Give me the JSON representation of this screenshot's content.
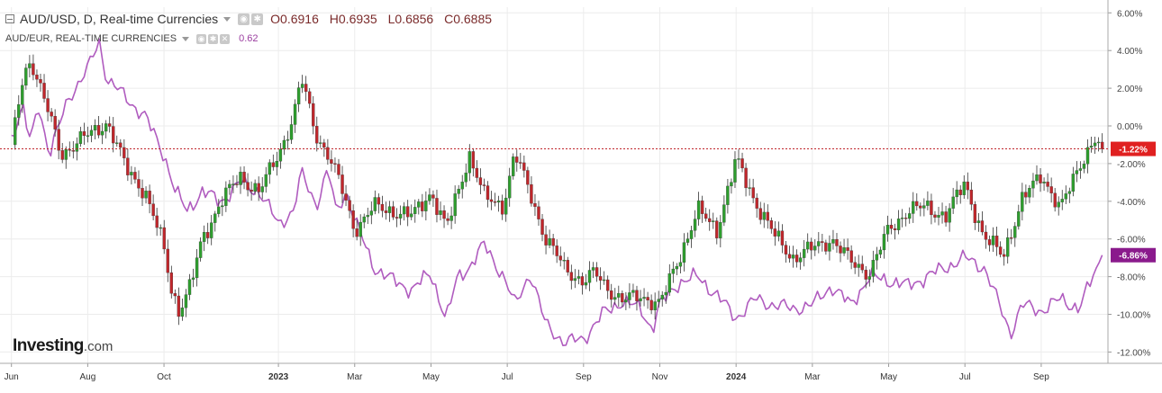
{
  "legend": {
    "main": {
      "title": "AUD/USD, D, Real-time Currencies",
      "open": "O0.6916",
      "high": "H0.6935",
      "low": "L0.6856",
      "close": "C0.6885"
    },
    "compare": {
      "title": "AUD/EUR, REAL-TIME CURRENCIES",
      "value": "0.62"
    }
  },
  "logo": {
    "brand": "Investing",
    "suffix": ".com"
  },
  "colors": {
    "up": "#2e9e2e",
    "down": "#c0262b",
    "compare_line": "#b05cbf",
    "main_badge": "#e02020",
    "compare_badge": "#8a1a8c",
    "grid": "#ececec"
  },
  "chart_data": {
    "type": "line",
    "y_axis": {
      "unit": "percent change",
      "ticks": [
        "6.00%",
        "4.00%",
        "2.00%",
        "0.00%",
        "-2.00%",
        "-4.00%",
        "-6.00%",
        "-8.00%",
        "-10.00%",
        "-12.00%"
      ],
      "range": [
        -12.6,
        6.3
      ]
    },
    "x_axis": {
      "ticks": [
        "Jun",
        "Aug",
        "Oct",
        "2023",
        "Mar",
        "May",
        "Jul",
        "Sep",
        "Nov",
        "2024",
        "Mar",
        "May",
        "Jul",
        "Sep"
      ],
      "tick_months": [
        0,
        2,
        4,
        7,
        9,
        11,
        13,
        15,
        17,
        19,
        21,
        23,
        25,
        27
      ],
      "range_months": [
        -0.3,
        28.75
      ]
    },
    "grid": true,
    "series": [
      {
        "name": "AUD/USD, D, Real-time Currencies",
        "style": "candlestick",
        "last_label": "-1.22%",
        "months": [
          0,
          0.3,
          0.5,
          1,
          1.3,
          2,
          2.5,
          3,
          3.5,
          4,
          4.2,
          4.4,
          4.7,
          5,
          5.5,
          6,
          6.5,
          7,
          7.4,
          7.6,
          8,
          8.3,
          8.6,
          9,
          9.5,
          10,
          10.5,
          11,
          11.4,
          12,
          12.4,
          12.9,
          13.2,
          13.6,
          14,
          14.5,
          15,
          15.3,
          15.6,
          16,
          16.5,
          17,
          17.4,
          18,
          18.5,
          19,
          19.5,
          20,
          20.5,
          21,
          21.5,
          22,
          22.5,
          23,
          23.5,
          24,
          24.5,
          25,
          25.5,
          26,
          26.5,
          27,
          27.5,
          28,
          28.4,
          28.6
        ],
        "values": [
          -1,
          2.5,
          3.6,
          0.5,
          -1.5,
          -0.5,
          0.2,
          -2.2,
          -3.5,
          -6.5,
          -8.7,
          -9.8,
          -8.5,
          -6,
          -4,
          -2.7,
          -3.5,
          -1.5,
          0.5,
          2.5,
          -0.5,
          -1.5,
          -3,
          -5.5,
          -4.3,
          -4.5,
          -4.8,
          -3.5,
          -5.5,
          -1.5,
          -3.8,
          -4.2,
          -1.5,
          -3.5,
          -6,
          -7.5,
          -8.3,
          -7.8,
          -8.5,
          -9.3,
          -9,
          -9.5,
          -7.5,
          -4.5,
          -5.5,
          -1.8,
          -4,
          -5.8,
          -7,
          -6.5,
          -6,
          -7.2,
          -7.8,
          -5.5,
          -4.5,
          -4.3,
          -4.8,
          -3,
          -6,
          -6.8,
          -4,
          -2.5,
          -4.5,
          -2,
          -0.8,
          -1.22
        ]
      },
      {
        "name": "AUD/EUR, REAL-TIME CURRENCIES",
        "style": "line",
        "last_label": "-6.86%",
        "months": [
          0,
          0.3,
          0.5,
          0.7,
          1,
          1.5,
          2,
          2.3,
          2.5,
          3,
          3.5,
          4,
          4.3,
          4.6,
          5,
          5.5,
          6,
          6.5,
          7,
          7.4,
          7.6,
          8,
          8.3,
          8.5,
          8.8,
          9,
          9.5,
          10,
          10.5,
          11,
          11.4,
          11.7,
          12,
          12.4,
          12.9,
          13.2,
          13.6,
          14,
          14.5,
          15,
          15.5,
          16,
          16.5,
          16.8,
          17,
          17.5,
          18,
          18.5,
          19,
          19.5,
          20,
          20.5,
          21,
          21.5,
          22,
          22.5,
          23,
          23.5,
          24,
          24.5,
          25,
          25.5,
          26,
          26.2,
          26.5,
          27,
          27.5,
          28,
          28.4,
          28.6
        ],
        "values": [
          -0.5,
          1,
          -1,
          1.2,
          -1.5,
          1.5,
          3,
          4.5,
          2.5,
          1.5,
          0.5,
          -1.5,
          -3.5,
          -4.5,
          -3.5,
          -4,
          -3,
          -3.5,
          -5.2,
          -4.5,
          -2.5,
          -4.2,
          -2.3,
          -4.5,
          -3.5,
          -5,
          -7.5,
          -8.2,
          -8.7,
          -7.8,
          -10.3,
          -8,
          -7.5,
          -6.3,
          -8,
          -9.5,
          -7.8,
          -10.5,
          -11.5,
          -11.3,
          -10,
          -9.3,
          -9.7,
          -10.8,
          -9.5,
          -8.3,
          -8,
          -9,
          -10.2,
          -9.2,
          -9.5,
          -9.7,
          -9.5,
          -8.5,
          -9.5,
          -8,
          -8.2,
          -8.5,
          -8,
          -7.5,
          -7,
          -7.5,
          -10,
          -11,
          -9.5,
          -9.8,
          -9.2,
          -9.7,
          -7.8,
          -6.86
        ]
      }
    ]
  }
}
